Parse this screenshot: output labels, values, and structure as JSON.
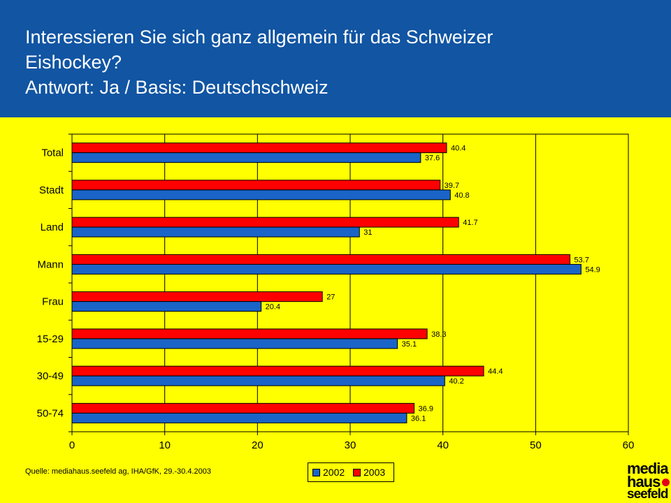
{
  "header": {
    "title_line1": "Interessieren Sie sich ganz allgemein für das Schweizer",
    "title_line2": "Eishockey?",
    "title_line3": "Antwort: Ja / Basis: Deutschschweiz"
  },
  "source": "Quelle: mediahaus.seefeld ag, IHA/GfK, 29.-30.4.2003",
  "logo": {
    "line1": "media",
    "line2": "haus",
    "line3": "seefeld"
  },
  "colors": {
    "header_bg": "#1155a3",
    "background": "#ffff00",
    "series_2002": "#1a64c8",
    "series_2003": "#ff0000"
  },
  "chart_data": {
    "type": "bar",
    "orientation": "horizontal",
    "categories": [
      "Total",
      "Stadt",
      "Land",
      "Mann",
      "Frau",
      "15-29",
      "30-49",
      "50-74"
    ],
    "series": [
      {
        "name": "2003",
        "values": [
          40.4,
          39.7,
          41.7,
          53.7,
          27,
          38.3,
          44.4,
          36.9
        ]
      },
      {
        "name": "2002",
        "values": [
          37.6,
          40.8,
          31,
          54.9,
          20.4,
          35.1,
          40.2,
          36.1
        ]
      }
    ],
    "legend": [
      "2002",
      "2003"
    ],
    "legend_placement": "bottom",
    "xlim": [
      0,
      60
    ],
    "xticks": [
      0,
      10,
      20,
      30,
      40,
      50,
      60
    ],
    "grid": true
  }
}
